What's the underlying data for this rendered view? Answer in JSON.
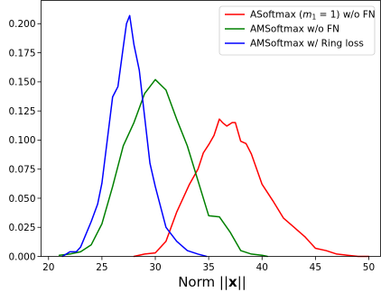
{
  "chart_data": {
    "type": "line",
    "title": "",
    "xlabel": "Norm ||x||",
    "ylabel": "",
    "xlim": [
      19.3,
      51.1
    ],
    "ylim": [
      0,
      0.22
    ],
    "xticks": [
      20,
      25,
      30,
      35,
      40,
      45,
      50
    ],
    "yticks": [
      0.0,
      0.025,
      0.05,
      0.075,
      0.1,
      0.125,
      0.15,
      0.175,
      0.2
    ],
    "xtick_labels": [
      "20",
      "25",
      "30",
      "35",
      "40",
      "45",
      "50"
    ],
    "ytick_labels": [
      "0.000",
      "0.025",
      "0.050",
      "0.075",
      "0.100",
      "0.125",
      "0.150",
      "0.175",
      "0.200"
    ],
    "grid": false,
    "legend_position": "top-right",
    "series": [
      {
        "name": "ASoftmax (m1 = 1) w/o FN",
        "color": "#ff0000",
        "x": [
          28.0,
          29.0,
          30.0,
          31.0,
          32.0,
          32.6,
          33.2,
          34.0,
          34.5,
          35.0,
          35.5,
          36.0,
          36.3,
          36.7,
          37.2,
          37.5,
          38.0,
          38.5,
          39.0,
          40.0,
          41.0,
          42.0,
          43.0,
          44.0,
          45.0,
          46.0,
          47.0,
          48.0,
          49.0,
          50.0
        ],
        "y": [
          0.0,
          0.002,
          0.003,
          0.013,
          0.038,
          0.05,
          0.062,
          0.075,
          0.089,
          0.096,
          0.104,
          0.118,
          0.115,
          0.112,
          0.115,
          0.115,
          0.099,
          0.097,
          0.088,
          0.062,
          0.048,
          0.033,
          0.025,
          0.017,
          0.007,
          0.005,
          0.002,
          0.001,
          0.0,
          0.0
        ],
        "values": [
          0.0,
          0.002,
          0.003,
          0.013,
          0.038,
          0.05,
          0.062,
          0.075,
          0.089,
          0.096,
          0.104,
          0.118,
          0.115,
          0.112,
          0.115,
          0.115,
          0.099,
          0.097,
          0.088,
          0.062,
          0.048,
          0.033,
          0.025,
          0.017,
          0.007,
          0.005,
          0.002,
          0.001,
          0.0,
          0.0
        ]
      },
      {
        "name": "AMSoftmax w/o FN",
        "color": "#008000",
        "x": [
          21.0,
          22.0,
          23.0,
          24.0,
          25.0,
          26.0,
          27.0,
          28.0,
          29.0,
          30.0,
          31.0,
          32.0,
          33.0,
          34.0,
          35.0,
          36.0,
          37.0,
          38.0,
          39.0,
          40.0,
          40.5
        ],
        "y": [
          0.001,
          0.002,
          0.004,
          0.01,
          0.028,
          0.06,
          0.095,
          0.115,
          0.14,
          0.152,
          0.143,
          0.118,
          0.095,
          0.065,
          0.035,
          0.034,
          0.021,
          0.005,
          0.002,
          0.001,
          0.0
        ],
        "values": [
          0.001,
          0.002,
          0.004,
          0.01,
          0.028,
          0.06,
          0.095,
          0.115,
          0.14,
          0.152,
          0.143,
          0.118,
          0.095,
          0.065,
          0.035,
          0.034,
          0.021,
          0.005,
          0.002,
          0.001,
          0.0
        ]
      },
      {
        "name": "AMSoftmax w/ Ring loss",
        "color": "#0000ff",
        "x": [
          21.3,
          22.0,
          22.6,
          23.0,
          24.0,
          24.6,
          25.0,
          25.5,
          26.0,
          26.5,
          27.0,
          27.3,
          27.6,
          28.0,
          28.5,
          29.0,
          29.5,
          30.0,
          31.0,
          32.0,
          33.0,
          34.0,
          34.8
        ],
        "y": [
          0.0,
          0.004,
          0.004,
          0.008,
          0.03,
          0.045,
          0.063,
          0.1,
          0.137,
          0.146,
          0.18,
          0.2,
          0.207,
          0.182,
          0.16,
          0.12,
          0.08,
          0.06,
          0.025,
          0.013,
          0.005,
          0.002,
          0.0
        ],
        "values": [
          0.0,
          0.004,
          0.004,
          0.008,
          0.03,
          0.045,
          0.063,
          0.1,
          0.137,
          0.146,
          0.18,
          0.2,
          0.207,
          0.182,
          0.16,
          0.12,
          0.08,
          0.06,
          0.025,
          0.013,
          0.005,
          0.002,
          0.0
        ]
      }
    ],
    "legend": [
      {
        "label_prefix": "ASoftmax (",
        "label_math_m": "m",
        "label_math_sub": "1",
        "label_math_rest": " = 1",
        "label_suffix": ") w/o FN",
        "color": "#ff0000"
      },
      {
        "label": "AMSoftmax w/o FN",
        "color": "#008000"
      },
      {
        "label": "AMSoftmax w/ Ring loss",
        "color": "#0000ff"
      }
    ],
    "xlabel_parts": {
      "prefix": "Norm ||",
      "bold": "x",
      "suffix": "||"
    }
  }
}
